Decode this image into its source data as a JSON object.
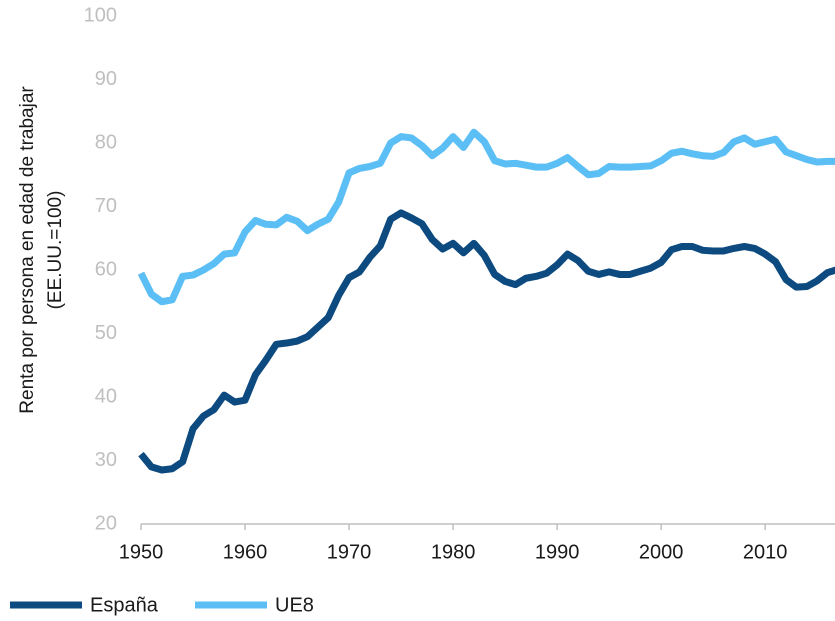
{
  "chart_data": {
    "type": "line",
    "y_label": [
      "Renta por persona en edad de trabajar",
      "(EE.UU.=100)"
    ],
    "x": [
      1950,
      1951,
      1952,
      1953,
      1954,
      1955,
      1956,
      1957,
      1958,
      1959,
      1960,
      1961,
      1962,
      1963,
      1964,
      1965,
      1966,
      1967,
      1968,
      1969,
      1970,
      1971,
      1972,
      1973,
      1974,
      1975,
      1976,
      1977,
      1978,
      1979,
      1980,
      1981,
      1982,
      1983,
      1984,
      1985,
      1986,
      1987,
      1988,
      1989,
      1990,
      1991,
      1992,
      1993,
      1994,
      1995,
      1996,
      1997,
      1998,
      1999,
      2000,
      2001,
      2002,
      2003,
      2004,
      2005,
      2006,
      2007,
      2008,
      2009,
      2010,
      2011,
      2012,
      2013,
      2014,
      2015,
      2016,
      2017
    ],
    "series": [
      {
        "name": "España",
        "color": "#0d4a80",
        "values": [
          31,
          29,
          28.5,
          28.7,
          29.8,
          35,
          37,
          38,
          40.3,
          39.2,
          39.5,
          43.5,
          45.8,
          48.3,
          48.5,
          48.8,
          49.5,
          51,
          52.5,
          56,
          58.8,
          59.7,
          62,
          63.8,
          68,
          69,
          68.2,
          67.3,
          64.8,
          63.3,
          64.2,
          62.7,
          64.2,
          62.3,
          59.3,
          58.2,
          57.7,
          58.7,
          59,
          59.5,
          60.8,
          62.5,
          61.5,
          59.8,
          59.3,
          59.7,
          59.3,
          59.3,
          59.8,
          60.3,
          61.2,
          63.2,
          63.7,
          63.7,
          63.1,
          63,
          63,
          63.4,
          63.7,
          63.4,
          62.5,
          61.3,
          58.5,
          57.3,
          57.4,
          58.3,
          59.6,
          60.1
        ]
      },
      {
        "name": "UE8",
        "color": "#5bbff5",
        "values": [
          59.5,
          56.2,
          55,
          55.3,
          59,
          59.2,
          60,
          61,
          62.5,
          62.7,
          66,
          67.8,
          67.2,
          67.1,
          68.3,
          67.7,
          66.2,
          67.2,
          68,
          70.7,
          75.3,
          76,
          76.3,
          76.8,
          80,
          81,
          80.8,
          79.6,
          78,
          79.2,
          81,
          79.3,
          81.7,
          80.2,
          77.2,
          76.7,
          76.8,
          76.5,
          76.2,
          76.2,
          76.8,
          77.7,
          76.3,
          75,
          75.2,
          76.3,
          76.2,
          76.2,
          76.3,
          76.4,
          77.2,
          78.4,
          78.7,
          78.3,
          78,
          77.9,
          78.5,
          80.2,
          80.8,
          79.8,
          80.2,
          80.6,
          78.6,
          78,
          77.4,
          77,
          77.1,
          77.1
        ]
      }
    ],
    "xlim": [
      1950,
      2017
    ],
    "xticks": [
      1950,
      1960,
      1970,
      1980,
      1990,
      2000,
      2010
    ],
    "ylim": [
      20,
      100
    ],
    "yticks": [
      20,
      30,
      40,
      50,
      60,
      70,
      80,
      90,
      100
    ],
    "grid": false,
    "legend": "bottom-left"
  }
}
